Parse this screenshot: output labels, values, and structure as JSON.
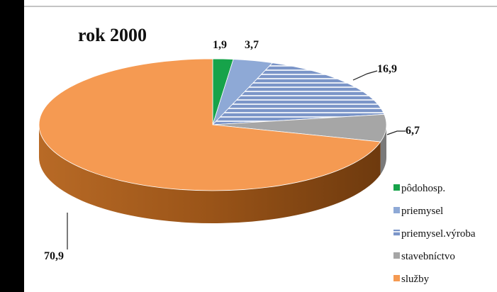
{
  "chart_data": {
    "type": "pie",
    "title": "rok 2000",
    "categories": [
      "pôdohosp.",
      "priemysel",
      "priemysel.výroba",
      "stavebníctvo",
      "služby"
    ],
    "values": [
      1.9,
      3.7,
      16.9,
      6.7,
      70.9
    ],
    "value_labels": [
      "1,9",
      "3,7",
      "16,9",
      "6,7",
      "70,9"
    ],
    "colors": [
      "#16a34a",
      "#8ea9d6",
      "#7b95c8",
      "#a6a6a6",
      "#f59a52"
    ],
    "legend_position": "bottom-right",
    "three_d": true
  }
}
